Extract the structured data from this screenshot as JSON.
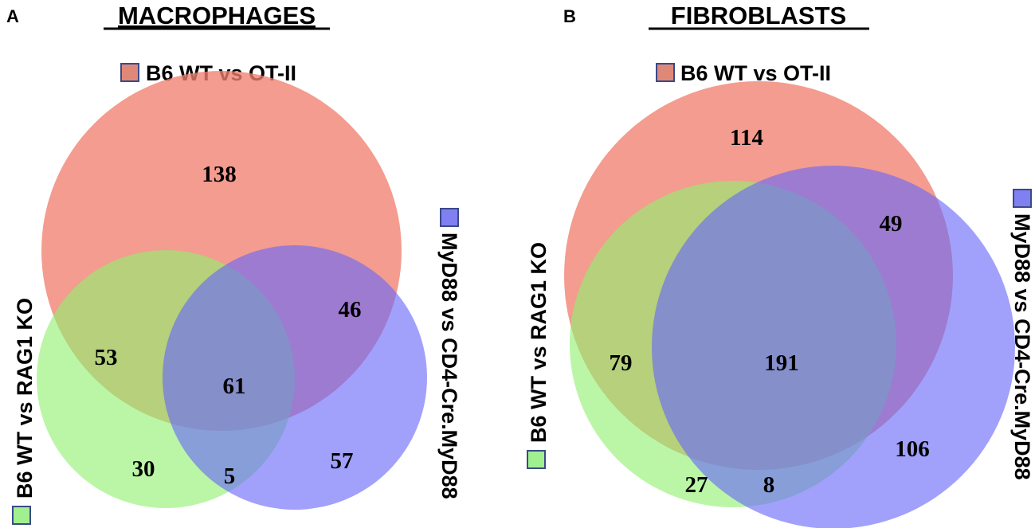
{
  "colors": {
    "set_a": "#f08070",
    "set_b": "#90f070",
    "set_c": "#6868f8",
    "swatch_a": "#e08878",
    "swatch_b": "#a0f090",
    "swatch_c": "#8080f0",
    "swatch_border": "#3a4a8a"
  },
  "panels": [
    {
      "letter": "A",
      "title": "MACROPHAGES",
      "legend": {
        "top": "B6 WT vs OT-II",
        "left": "B6 WT vs RAG1 KO",
        "right": "MyD88 vs CD4-Cre.MyD88"
      },
      "counts": {
        "a_only": "138",
        "a_b": "53",
        "a_c": "46",
        "a_b_c": "61",
        "b_only": "30",
        "b_c": "5",
        "c_only": "57"
      }
    },
    {
      "letter": "B",
      "title": "FIBROBLASTS",
      "legend": {
        "top": "B6 WT vs OT-II",
        "left": "B6 WT vs RAG1 KO",
        "right": "MyD88 vs CD4-Cre.MyD88"
      },
      "counts": {
        "a_only": "114",
        "a_c": "49",
        "a_b": "79",
        "a_b_c": "191",
        "b_c": "8",
        "b_only": "27",
        "c_only": "106"
      }
    }
  ]
}
